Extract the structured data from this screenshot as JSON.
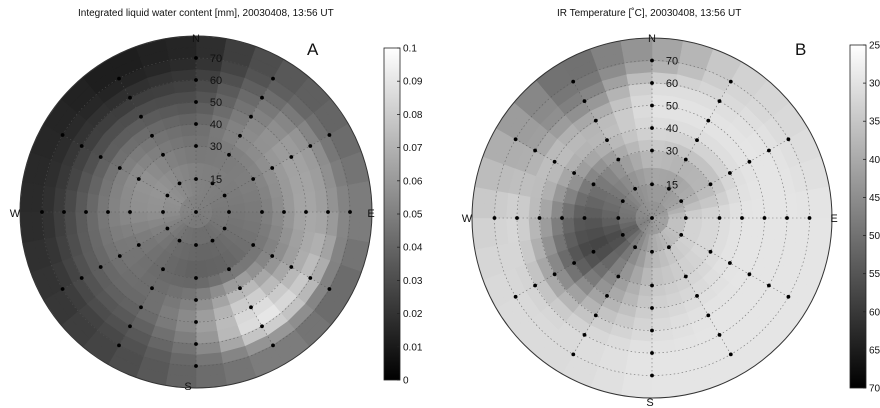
{
  "chart_data": [
    {
      "type": "heatmap",
      "projection": "polar",
      "title": "Integrated liquid water content [mm], 20030408, 13:56 UT",
      "panel_label": "A",
      "compass": {
        "N": "N",
        "E": "E",
        "S": "S",
        "W": "W"
      },
      "radial_ticks": [
        "15",
        "30",
        "40",
        "50",
        "60",
        "70"
      ],
      "radial_tick_values": [
        15,
        30,
        40,
        50,
        60,
        70
      ],
      "colorbar": {
        "ticks": [
          "0.1",
          "0.09",
          "0.08",
          "0.07",
          "0.06",
          "0.05",
          "0.04",
          "0.03",
          "0.02",
          "0.01",
          "0"
        ],
        "min": 0,
        "max": 0.1,
        "direction": "light-at-top"
      },
      "azimuths_deg": [
        0,
        30,
        60,
        90,
        120,
        150,
        180,
        210,
        240,
        270,
        300,
        330
      ],
      "rings": [
        {
          "zenith": 15,
          "values": [
            0.052,
            0.05,
            0.048,
            0.046,
            0.044,
            0.04,
            0.04,
            0.042,
            0.05,
            0.058,
            0.06,
            0.056
          ]
        },
        {
          "zenith": 30,
          "values": [
            0.045,
            0.048,
            0.05,
            0.048,
            0.044,
            0.038,
            0.036,
            0.04,
            0.046,
            0.056,
            0.058,
            0.05
          ]
        },
        {
          "zenith": 40,
          "values": [
            0.04,
            0.055,
            0.06,
            0.058,
            0.052,
            0.074,
            0.05,
            0.042,
            0.046,
            0.05,
            0.048,
            0.044
          ]
        },
        {
          "zenith": 50,
          "values": [
            0.03,
            0.05,
            0.066,
            0.068,
            0.066,
            0.092,
            0.06,
            0.04,
            0.038,
            0.038,
            0.032,
            0.032
          ]
        },
        {
          "zenith": 60,
          "values": [
            0.022,
            0.042,
            0.06,
            0.062,
            0.082,
            0.098,
            0.05,
            0.032,
            0.028,
            0.024,
            0.02,
            0.018
          ]
        },
        {
          "zenith": 70,
          "values": [
            0.012,
            0.032,
            0.04,
            0.05,
            0.04,
            0.05,
            0.04,
            0.026,
            0.018,
            0.014,
            0.012,
            0.008
          ]
        }
      ],
      "center_value": 0.05
    },
    {
      "type": "heatmap",
      "projection": "polar",
      "title": "IR Temperature [˚C], 20030408, 13:56 UT",
      "panel_label": "B",
      "compass": {
        "N": "N",
        "E": "E",
        "S": "S",
        "W": "W"
      },
      "radial_ticks": [
        "15",
        "30",
        "40",
        "50",
        "60",
        "70"
      ],
      "radial_tick_values": [
        15,
        30,
        40,
        50,
        60,
        70
      ],
      "colorbar": {
        "ticks": [
          "25",
          "30",
          "35",
          "40",
          "45",
          "50",
          "55",
          "60",
          "65",
          "70"
        ],
        "visible_ticks_clipped": true,
        "min": -70,
        "max": -25,
        "direction": "light-at-top"
      },
      "azimuths_deg": [
        0,
        30,
        60,
        90,
        120,
        150,
        180,
        210,
        240,
        270,
        300,
        330
      ],
      "rings": [
        {
          "zenith": 15,
          "values": [
            -42,
            -42,
            -40,
            -32,
            -32,
            -34,
            -38,
            -48,
            -58,
            -52,
            -50,
            -45
          ]
        },
        {
          "zenith": 30,
          "values": [
            -34,
            -36,
            -36,
            -30,
            -30,
            -32,
            -34,
            -44,
            -60,
            -56,
            -50,
            -42
          ]
        },
        {
          "zenith": 40,
          "values": [
            -30,
            -30,
            -30,
            -28,
            -28,
            -30,
            -32,
            -40,
            -55,
            -50,
            -40,
            -36
          ]
        },
        {
          "zenith": 50,
          "values": [
            -28,
            -28,
            -28,
            -28,
            -28,
            -28,
            -30,
            -34,
            -44,
            -38,
            -34,
            -38
          ]
        },
        {
          "zenith": 60,
          "values": [
            -30,
            -30,
            -28,
            -28,
            -28,
            -28,
            -28,
            -30,
            -32,
            -30,
            -40,
            -48
          ]
        },
        {
          "zenith": 70,
          "values": [
            -42,
            -32,
            -30,
            -28,
            -28,
            -28,
            -28,
            -30,
            -30,
            -32,
            -40,
            -52
          ]
        }
      ],
      "center_value": -44
    }
  ]
}
